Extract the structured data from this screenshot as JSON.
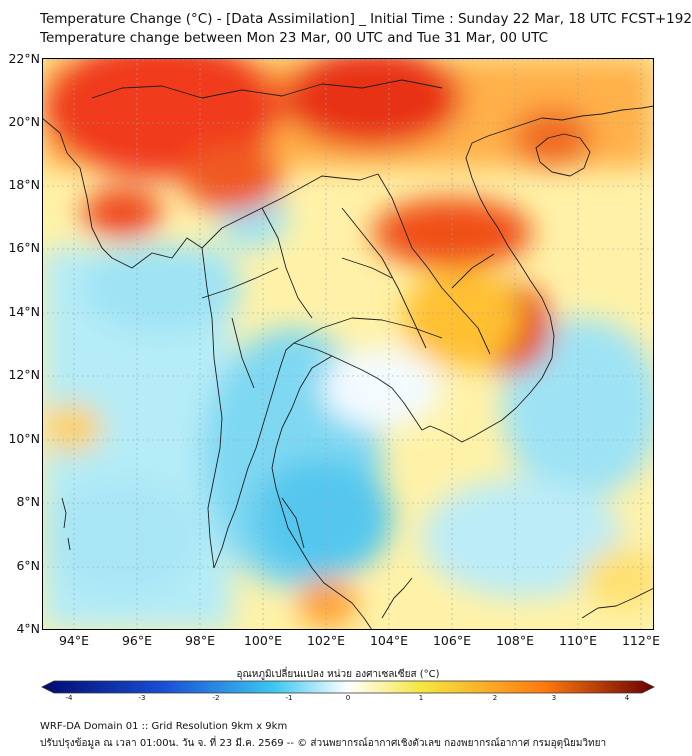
{
  "title_line1": "Temperature Change (°C) - [Data Assimilation] _ Initial Time : Sunday 22 Mar, 18 UTC FCST+192",
  "title_line2": "Temperature change between Mon 23 Mar, 00 UTC and Tue 31 Mar, 00 UTC",
  "lat_labels": [
    "22°N",
    "20°N",
    "18°N",
    "16°N",
    "14°N",
    "12°N",
    "10°N",
    "8°N",
    "6°N",
    "4°N"
  ],
  "lon_labels": [
    "94°E",
    "96°E",
    "98°E",
    "100°E",
    "102°E",
    "104°E",
    "106°E",
    "108°E",
    "110°E",
    "112°E"
  ],
  "colorbar": {
    "label": "อุณหภูมิเปลี่ยนแปลง หน่วย องศาเซลเซียส (°C)",
    "ticks": [
      "-4",
      "-3",
      "-2",
      "-1",
      "0",
      "1",
      "2",
      "3",
      "4"
    ],
    "colors": {
      "cold_extreme": "#000a6e",
      "cold": "#1a4fd6",
      "cool": "#3cc8f0",
      "neutral": "#ffffff",
      "warm": "#f5e640",
      "hot": "#ff7a10",
      "hot_extreme": "#6b0000"
    }
  },
  "footer_line1": "WRF-DA Domain 01 :: Grid Resolution 9km x 9km",
  "footer_line2": "ปรับปรุงข้อมูล ณ เวลา 01:00น. วัน จ. ที่ 23 มี.ค. 2569 -- © ส่วนพยากรณ์อากาศเชิงตัวเลข กองพยากรณ์อากาศ กรมอุตุนิยมวิทยา"
}
